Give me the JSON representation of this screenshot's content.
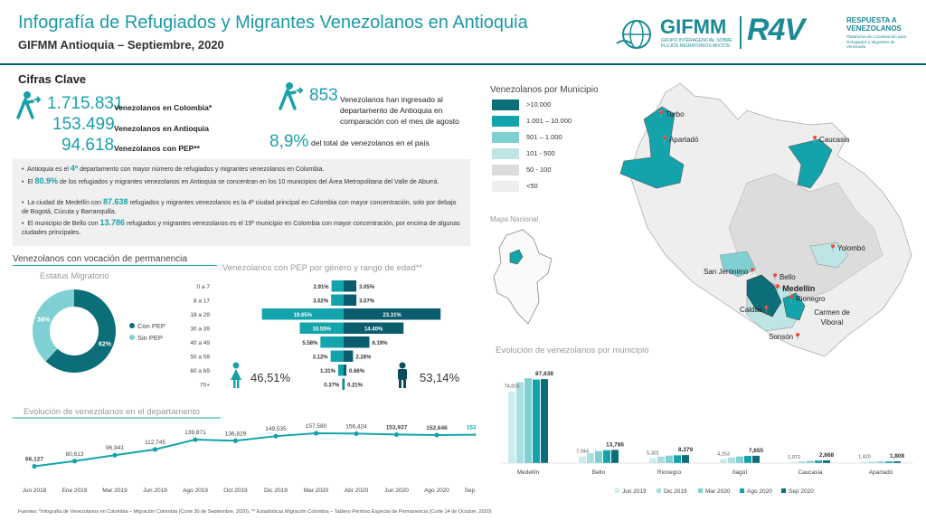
{
  "header": {
    "title": "Infografía de Refugiados y Migrantes Venezolanos en Antioquia",
    "subtitle": "GIFMM Antioquia – Septiembre, 2020",
    "gifmm_logo": "GIFMM",
    "gifmm_sub": "GRUPO INTERAGENCIAL SOBRE FLUJOS MIGRATORIOS MIXTOS",
    "r4v_logo": "R4V",
    "r4v_title": "RESPUESTA A VENEZOLANOS",
    "r4v_sub": "Plataforma de Coordinación para Refugiados y Migrantes de Venezuela"
  },
  "key_figures": {
    "title": "Cifras Clave",
    "colombia_value": "1.715.831",
    "colombia_label": "Venezolanos en Colombia*",
    "antioquia_value": "153.499",
    "antioquia_label": "Venezolanos en Antioquia",
    "pep_value": "94.618",
    "pep_label": "Venezolanos con PEP**",
    "increase_value": "853",
    "increase_label": "Venezolanos han ingresado al departamento de Antioquia en comparación con el mes de agosto",
    "share_value": "8,9%",
    "share_label": "del total de venezolanos en el país"
  },
  "notes": [
    {
      "pre": "Antioquia es el ",
      "hl": "4º",
      "post": " departamento con mayor número de refugiados y migrantes venezolanos en Colombia."
    },
    {
      "pre": "El ",
      "hl": "80.9%",
      "post": " de los refugiados y migrantes venezolanos en Antioquia se concentran en los 10 municipios del Área Metropolitana del Valle de Aburrá."
    },
    {
      "pre": "La ciudad de Medellín con ",
      "hl": "87.638",
      "post": " refugiados y migrantes venezolanos es la 4ª ciudad principal en Colombia con mayor concentración, solo por debajo de Bogotá, Cúcuta y Barranquilla."
    },
    {
      "pre": "El municipio de Bello con ",
      "hl": "13.786",
      "post": " refugiados y migrantes venezolanos es el 19º municipio en Colombia con mayor concentración, por encima de algunas ciudades principales."
    }
  ],
  "permanence": {
    "title": "Venezolanos con vocación de permanencia",
    "status_title": "Estatus Migratorio",
    "gender_title": "Venezolanos con PEP por género y rango de edad**",
    "female_pct": "46,51%",
    "male_pct": "53,14%"
  },
  "map": {
    "legend_title": "Venezolanos por Municipio",
    "legend": [
      {
        "label": ">10.000",
        "color": "#0b6e78"
      },
      {
        "label": "1.001 – 10.000",
        "color": "#13a4ab"
      },
      {
        "label": "501 – 1.000",
        "color": "#7fd0d2"
      },
      {
        "label": "101 - 500",
        "color": "#bfe4e5"
      },
      {
        "label": "50 - 100",
        "color": "#dcdcdc"
      },
      {
        "label": "<50",
        "color": "#eeeeee"
      }
    ],
    "national_title": "Mapa Nacional",
    "places": [
      "Turbo",
      "Apartadó",
      "Caucasia",
      "Yolombó",
      "San Jerónimo",
      "Bello",
      "Medellín",
      "Rionegro",
      "Caldas",
      "Carmen de Viboral",
      "Sonsón"
    ]
  },
  "footer": "Fuentes: *Infografía de Venezolanos en Colombia – Migración Colombia (Corte 30 de Septiembre, 2020). ** Estadísticas Migración Colombia – Tablero Permiso Especial de Permanencia (Corte 14 de Octubre, 2020)",
  "colors": {
    "accent": "#1aa0aa",
    "dark": "#0a5c6c"
  },
  "chart_data": [
    {
      "type": "pie",
      "title": "Estatus Migratorio",
      "categories": [
        "Con PEP",
        "Sin PEP"
      ],
      "values": [
        62,
        38
      ],
      "labels": [
        "62%",
        "38%"
      ],
      "colors": [
        "#0b6e78",
        "#7fd0d2"
      ]
    },
    {
      "type": "bar",
      "title": "Venezolanos con PEP por género y rango de edad**",
      "categories": [
        "0 a 7",
        "8 a 17",
        "18 a 29",
        "30 a 39",
        "40 a 49",
        "50 a 59",
        "60 a 69",
        "70+"
      ],
      "series": [
        {
          "name": "Mujeres",
          "values": [
            2.91,
            3.02,
            19.65,
            10.55,
            5.58,
            3.12,
            1.31,
            0.37
          ],
          "labels": [
            "2.91%",
            "3.02%",
            "19.65%",
            "10.55%",
            "5.58%",
            "3.12%",
            "1.31%",
            "0.37%"
          ]
        },
        {
          "name": "Hombres",
          "values": [
            3.05,
            3.07,
            23.31,
            14.4,
            6.19,
            2.26,
            0.66,
            0.21
          ],
          "labels": [
            "3.05%",
            "3.07%",
            "23.31%",
            "14.40%",
            "6.19%",
            "2.26%",
            "0.66%",
            "0.21%"
          ]
        }
      ]
    },
    {
      "type": "line",
      "title": "Evolución de venezolanos en el departamento",
      "categories": [
        "Jun 2018",
        "Ene 2019",
        "Mar 2019",
        "Jun 2019",
        "Ago 2019",
        "Oct 2019",
        "Dic 2019",
        "Mar 2020",
        "Abr 2020",
        "Jun 2020",
        "Ago 2020",
        "Sep 2020"
      ],
      "values": [
        66127,
        80613,
        96941,
        112745,
        139871,
        136829,
        149535,
        157580,
        156424,
        153937,
        152646,
        153499
      ],
      "labels": [
        "66,127",
        "80,613",
        "96,941",
        "112,745",
        "139,871",
        "136,829",
        "149,535",
        "157,580",
        "156,424",
        "153,937",
        "152,646",
        "153,499"
      ]
    },
    {
      "type": "bar",
      "title": "Evolución de venezolanos por municipio",
      "categories": [
        "Medellín",
        "Bello",
        "Rionegro",
        "Itagüí",
        "Caucasia",
        "Apartadó"
      ],
      "series": [
        {
          "name": "Jun 2019",
          "color": "#cdeced",
          "values": [
            74816,
            7044,
            5301,
            4253,
            1072,
            1420
          ]
        },
        {
          "name": "Dic 2019",
          "color": "#a8dfe0",
          "values": [
            84500,
            10500,
            6900,
            5800,
            1700,
            1550
          ]
        },
        {
          "name": "Mar 2020",
          "color": "#7fd0d2",
          "values": [
            88500,
            12600,
            7800,
            6900,
            2300,
            1700
          ]
        },
        {
          "name": "Ago 2020",
          "color": "#13a4ab",
          "values": [
            87200,
            13500,
            8150,
            7500,
            2750,
            1780
          ]
        },
        {
          "name": "Sep 2020",
          "color": "#0b6e78",
          "values": [
            87638,
            13786,
            8379,
            7655,
            2868,
            1808
          ]
        }
      ],
      "first_labels": [
        "74,816",
        "7,044",
        "5,301",
        "4,253",
        "1,072",
        "1,420"
      ],
      "last_labels": [
        "87,638",
        "13,786",
        "8,379",
        "7,655",
        "2,868",
        "1,808"
      ]
    }
  ]
}
